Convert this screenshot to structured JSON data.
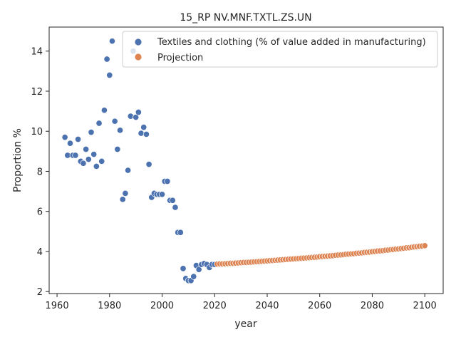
{
  "chart_data": {
    "type": "scatter",
    "title": "15_RP NV.MNF.TXTL.ZS.UN",
    "xlabel": "year",
    "ylabel": "Proportion %",
    "xlim": [
      1957,
      2107
    ],
    "ylim": [
      1.9,
      15.2
    ],
    "xticks": [
      1960,
      1980,
      2000,
      2020,
      2040,
      2060,
      2080,
      2100
    ],
    "yticks": [
      2,
      4,
      6,
      8,
      10,
      12,
      14
    ],
    "grid": false,
    "legend_position": "top-right",
    "colors": {
      "observed": "#4c72b0",
      "projection": "#dd8452",
      "axis": "#262626"
    },
    "series": [
      {
        "name": "Textiles and clothing (% of value added in manufacturing)",
        "x": [
          1963,
          1964,
          1965,
          1966,
          1967,
          1968,
          1969,
          1970,
          1971,
          1972,
          1973,
          1974,
          1975,
          1976,
          1977,
          1978,
          1979,
          1980,
          1981,
          1982,
          1983,
          1984,
          1985,
          1986,
          1987,
          1988,
          1989,
          1990,
          1991,
          1992,
          1993,
          1994,
          1995,
          1996,
          1997,
          1998,
          1999,
          2000,
          2001,
          2002,
          2003,
          2004,
          2005,
          2006,
          2007,
          2008,
          2009,
          2010,
          2011,
          2012,
          2013,
          2014,
          2015,
          2016,
          2017,
          2018,
          2019,
          2020
        ],
        "y": [
          9.7,
          8.8,
          9.4,
          8.8,
          8.8,
          9.6,
          8.5,
          8.4,
          9.1,
          8.6,
          9.95,
          8.85,
          8.25,
          10.4,
          8.5,
          11.05,
          13.6,
          12.8,
          14.5,
          10.5,
          9.1,
          10.05,
          6.6,
          6.9,
          8.05,
          10.75,
          14.0,
          10.7,
          10.95,
          9.9,
          10.2,
          9.85,
          8.35,
          6.7,
          6.9,
          6.85,
          6.85,
          6.85,
          7.5,
          7.5,
          6.55,
          6.55,
          6.2,
          4.95,
          4.95,
          3.15,
          2.65,
          2.55,
          2.55,
          2.75,
          3.3,
          3.1,
          3.35,
          3.4,
          3.35,
          3.2,
          3.35,
          3.35
        ]
      },
      {
        "name": "Projection",
        "x": [
          2021,
          2022,
          2023,
          2024,
          2025,
          2026,
          2027,
          2028,
          2029,
          2030,
          2031,
          2032,
          2033,
          2034,
          2035,
          2036,
          2037,
          2038,
          2039,
          2040,
          2041,
          2042,
          2043,
          2044,
          2045,
          2046,
          2047,
          2048,
          2049,
          2050,
          2051,
          2052,
          2053,
          2054,
          2055,
          2056,
          2057,
          2058,
          2059,
          2060,
          2061,
          2062,
          2063,
          2064,
          2065,
          2066,
          2067,
          2068,
          2069,
          2070,
          2071,
          2072,
          2073,
          2074,
          2075,
          2076,
          2077,
          2078,
          2079,
          2080,
          2081,
          2082,
          2083,
          2084,
          2085,
          2086,
          2087,
          2088,
          2089,
          2090,
          2091,
          2092,
          2093,
          2094,
          2095,
          2096,
          2097,
          2098,
          2099,
          2100
        ],
        "y": [
          3.37,
          3.38,
          3.38,
          3.39,
          3.4,
          3.41,
          3.41,
          3.42,
          3.43,
          3.44,
          3.45,
          3.45,
          3.46,
          3.47,
          3.48,
          3.49,
          3.5,
          3.51,
          3.52,
          3.53,
          3.54,
          3.55,
          3.56,
          3.57,
          3.58,
          3.59,
          3.6,
          3.61,
          3.62,
          3.63,
          3.64,
          3.65,
          3.66,
          3.67,
          3.68,
          3.69,
          3.7,
          3.71,
          3.72,
          3.74,
          3.75,
          3.76,
          3.77,
          3.78,
          3.79,
          3.81,
          3.82,
          3.83,
          3.84,
          3.86,
          3.87,
          3.88,
          3.89,
          3.91,
          3.92,
          3.93,
          3.95,
          3.96,
          3.97,
          3.99,
          4.0,
          4.02,
          4.03,
          4.04,
          4.06,
          4.07,
          4.09,
          4.1,
          4.12,
          4.13,
          4.15,
          4.16,
          4.18,
          4.19,
          4.21,
          4.23,
          4.24,
          4.26,
          4.27,
          4.29
        ]
      }
    ]
  }
}
